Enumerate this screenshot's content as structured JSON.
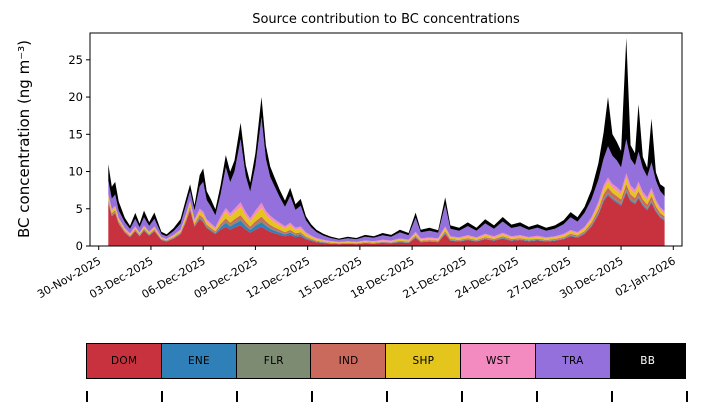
{
  "figure": {
    "background": "#ffffff"
  },
  "chart_data": {
    "type": "area",
    "stacked": true,
    "title": "Source contribution to BC concentrations",
    "xlabel": "",
    "ylabel": "BC concentration (ng m⁻³)",
    "ylim": [
      0,
      28.6
    ],
    "xlim_days": [
      -0.5,
      33.5
    ],
    "x_unit": "days since 30-Nov-2025 (dates shown as tick labels)",
    "grid": false,
    "legend_position": "bottom",
    "yticks": [
      0,
      5,
      10,
      15,
      20,
      25
    ],
    "xticks": [
      {
        "day": 0,
        "label": "30-Nov-2025"
      },
      {
        "day": 3,
        "label": "03-Dec-2025"
      },
      {
        "day": 6,
        "label": "06-Dec-2025"
      },
      {
        "day": 9,
        "label": "09-Dec-2025"
      },
      {
        "day": 12,
        "label": "12-Dec-2025"
      },
      {
        "day": 15,
        "label": "15-Dec-2025"
      },
      {
        "day": 18,
        "label": "18-Dec-2025"
      },
      {
        "day": 21,
        "label": "21-Dec-2025"
      },
      {
        "day": 24,
        "label": "24-Dec-2025"
      },
      {
        "day": 27,
        "label": "27-Dec-2025"
      },
      {
        "day": 30,
        "label": "30-Dec-2025"
      },
      {
        "day": 33,
        "label": "02-Jan-2026"
      }
    ],
    "series_order": [
      "DOM",
      "ENE",
      "FLR",
      "IND",
      "SHP",
      "WST",
      "TRA",
      "BB"
    ],
    "series_colors": {
      "DOM": "#c8323e",
      "ENE": "#2f7fb8",
      "FLR": "#7c8b72",
      "IND": "#c96a5c",
      "SHP": "#e3c51c",
      "WST": "#f38ac0",
      "TRA": "#9370db",
      "BB": "#000000"
    },
    "columns": [
      "day",
      "DOM",
      "ENE",
      "FLR",
      "IND",
      "SHP",
      "WST",
      "TRA",
      "BB"
    ],
    "points": [
      [
        0.55,
        5.8,
        0.1,
        0.1,
        0.3,
        0.4,
        0.3,
        1.8,
        2.2
      ],
      [
        0.75,
        4.0,
        0.08,
        0.08,
        0.25,
        0.3,
        0.25,
        1.4,
        1.6
      ],
      [
        0.95,
        4.4,
        0.08,
        0.08,
        0.25,
        0.35,
        0.25,
        1.5,
        1.7
      ],
      [
        1.15,
        3.0,
        0.06,
        0.06,
        0.2,
        0.25,
        0.2,
        1.0,
        1.2
      ],
      [
        1.5,
        1.8,
        0.05,
        0.05,
        0.15,
        0.2,
        0.15,
        0.8,
        0.6
      ],
      [
        1.8,
        1.2,
        0.05,
        0.05,
        0.1,
        0.15,
        0.15,
        0.6,
        0.4
      ],
      [
        2.1,
        2.0,
        0.05,
        0.05,
        0.15,
        0.2,
        0.2,
        1.0,
        0.8
      ],
      [
        2.35,
        1.3,
        0.05,
        0.05,
        0.1,
        0.15,
        0.15,
        0.7,
        0.5
      ],
      [
        2.6,
        2.1,
        0.05,
        0.05,
        0.15,
        0.2,
        0.2,
        1.1,
        0.9
      ],
      [
        2.9,
        1.4,
        0.05,
        0.05,
        0.1,
        0.15,
        0.15,
        0.8,
        0.5
      ],
      [
        3.2,
        2.0,
        0.05,
        0.05,
        0.15,
        0.2,
        0.2,
        1.0,
        0.85
      ],
      [
        3.6,
        0.8,
        0.04,
        0.04,
        0.08,
        0.12,
        0.12,
        0.4,
        0.3
      ],
      [
        3.9,
        0.6,
        0.04,
        0.04,
        0.08,
        0.1,
        0.1,
        0.35,
        0.25
      ],
      [
        4.3,
        1.0,
        0.05,
        0.05,
        0.1,
        0.15,
        0.15,
        0.5,
        0.4
      ],
      [
        4.7,
        1.6,
        0.05,
        0.05,
        0.12,
        0.2,
        0.18,
        0.8,
        0.6
      ],
      [
        5.0,
        3.2,
        0.08,
        0.08,
        0.2,
        0.4,
        0.25,
        1.2,
        0.8
      ],
      [
        5.25,
        4.8,
        0.1,
        0.1,
        0.3,
        0.5,
        0.3,
        1.3,
        0.9
      ],
      [
        5.5,
        2.6,
        0.08,
        0.08,
        0.2,
        0.35,
        0.25,
        1.2,
        0.7
      ],
      [
        5.8,
        3.6,
        0.15,
        0.12,
        0.3,
        0.5,
        0.35,
        3.0,
        1.5
      ],
      [
        6.0,
        3.2,
        0.15,
        0.12,
        0.3,
        0.5,
        0.35,
        4.0,
        1.8
      ],
      [
        6.2,
        2.4,
        0.12,
        0.1,
        0.25,
        0.4,
        0.3,
        2.6,
        1.2
      ],
      [
        6.45,
        2.0,
        0.1,
        0.1,
        0.2,
        0.35,
        0.3,
        2.2,
        1.0
      ],
      [
        6.7,
        1.6,
        0.1,
        0.08,
        0.18,
        0.3,
        0.25,
        1.6,
        0.8
      ],
      [
        7.0,
        2.2,
        0.3,
        0.15,
        0.3,
        0.6,
        0.4,
        3.0,
        1.2
      ],
      [
        7.3,
        2.6,
        0.5,
        0.2,
        0.4,
        0.9,
        0.5,
        5.5,
        1.6
      ],
      [
        7.55,
        2.2,
        0.4,
        0.18,
        0.35,
        0.8,
        0.45,
        4.2,
        1.4
      ],
      [
        7.8,
        2.5,
        0.5,
        0.2,
        0.4,
        0.9,
        0.5,
        5.0,
        1.5
      ],
      [
        8.15,
        2.8,
        0.6,
        0.25,
        0.5,
        1.1,
        0.6,
        8.5,
        2.2
      ],
      [
        8.45,
        2.2,
        0.45,
        0.2,
        0.4,
        0.8,
        0.5,
        4.8,
        1.5
      ],
      [
        8.7,
        1.8,
        0.35,
        0.15,
        0.3,
        0.7,
        0.4,
        3.6,
        1.2
      ],
      [
        9.0,
        2.2,
        0.5,
        0.2,
        0.4,
        0.9,
        0.55,
        6.0,
        1.7
      ],
      [
        9.35,
        2.6,
        0.6,
        0.25,
        0.5,
        1.2,
        0.65,
        11.5,
        2.7
      ],
      [
        9.6,
        2.2,
        0.5,
        0.2,
        0.4,
        0.9,
        0.5,
        7.0,
        1.8
      ],
      [
        9.85,
        1.9,
        0.4,
        0.18,
        0.35,
        0.8,
        0.45,
        5.2,
        1.4
      ],
      [
        10.1,
        1.7,
        0.35,
        0.15,
        0.3,
        0.7,
        0.4,
        4.4,
        1.2
      ],
      [
        10.4,
        1.5,
        0.3,
        0.12,
        0.25,
        0.6,
        0.35,
        3.4,
        1.0
      ],
      [
        10.7,
        1.3,
        0.25,
        0.1,
        0.2,
        0.5,
        0.3,
        2.6,
        0.85
      ],
      [
        11.0,
        1.5,
        0.3,
        0.12,
        0.25,
        0.6,
        0.35,
        3.6,
        1.1
      ],
      [
        11.3,
        1.2,
        0.2,
        0.1,
        0.2,
        0.45,
        0.3,
        2.4,
        0.75
      ],
      [
        11.6,
        1.3,
        0.22,
        0.1,
        0.2,
        0.5,
        0.3,
        2.8,
        0.9
      ],
      [
        11.9,
        0.9,
        0.15,
        0.08,
        0.15,
        0.35,
        0.22,
        1.6,
        0.55
      ],
      [
        12.2,
        0.7,
        0.1,
        0.06,
        0.12,
        0.25,
        0.18,
        1.1,
        0.4
      ],
      [
        12.5,
        0.5,
        0.08,
        0.05,
        0.1,
        0.2,
        0.15,
        0.8,
        0.3
      ],
      [
        12.9,
        0.4,
        0.06,
        0.04,
        0.08,
        0.15,
        0.12,
        0.55,
        0.25
      ],
      [
        13.3,
        0.3,
        0.05,
        0.04,
        0.06,
        0.12,
        0.1,
        0.4,
        0.2
      ],
      [
        13.8,
        0.25,
        0.04,
        0.03,
        0.05,
        0.1,
        0.08,
        0.3,
        0.15
      ],
      [
        14.3,
        0.3,
        0.04,
        0.03,
        0.06,
        0.12,
        0.1,
        0.4,
        0.2
      ],
      [
        14.8,
        0.25,
        0.04,
        0.03,
        0.05,
        0.1,
        0.08,
        0.35,
        0.18
      ],
      [
        15.3,
        0.35,
        0.05,
        0.04,
        0.07,
        0.13,
        0.1,
        0.5,
        0.25
      ],
      [
        15.8,
        0.3,
        0.04,
        0.03,
        0.06,
        0.12,
        0.1,
        0.45,
        0.2
      ],
      [
        16.3,
        0.4,
        0.05,
        0.04,
        0.08,
        0.15,
        0.12,
        0.6,
        0.3
      ],
      [
        16.8,
        0.35,
        0.05,
        0.04,
        0.07,
        0.13,
        0.1,
        0.5,
        0.25
      ],
      [
        17.3,
        0.5,
        0.06,
        0.05,
        0.1,
        0.18,
        0.13,
        0.8,
        0.35
      ],
      [
        17.8,
        0.4,
        0.05,
        0.04,
        0.08,
        0.15,
        0.12,
        0.6,
        0.3
      ],
      [
        18.2,
        1.1,
        0.08,
        0.06,
        0.15,
        0.3,
        0.2,
        1.9,
        0.7
      ],
      [
        18.5,
        0.5,
        0.06,
        0.05,
        0.1,
        0.18,
        0.13,
        0.8,
        0.35
      ],
      [
        19.0,
        0.6,
        0.06,
        0.05,
        0.1,
        0.2,
        0.15,
        0.9,
        0.4
      ],
      [
        19.5,
        0.5,
        0.06,
        0.05,
        0.1,
        0.18,
        0.13,
        0.75,
        0.35
      ],
      [
        19.9,
        1.6,
        0.1,
        0.08,
        0.2,
        0.4,
        0.25,
        2.9,
        1.0
      ],
      [
        20.2,
        0.7,
        0.07,
        0.05,
        0.12,
        0.22,
        0.16,
        1.0,
        0.45
      ],
      [
        20.7,
        0.6,
        0.06,
        0.05,
        0.1,
        0.2,
        0.15,
        0.9,
        0.4
      ],
      [
        21.2,
        0.8,
        0.07,
        0.06,
        0.12,
        0.25,
        0.17,
        1.2,
        0.5
      ],
      [
        21.7,
        0.6,
        0.06,
        0.05,
        0.1,
        0.2,
        0.15,
        0.9,
        0.4
      ],
      [
        22.2,
        0.9,
        0.08,
        0.06,
        0.14,
        0.28,
        0.18,
        1.4,
        0.55
      ],
      [
        22.7,
        0.7,
        0.07,
        0.05,
        0.12,
        0.22,
        0.16,
        1.0,
        0.45
      ],
      [
        23.2,
        1.0,
        0.08,
        0.06,
        0.15,
        0.3,
        0.2,
        1.5,
        0.6
      ],
      [
        23.7,
        0.7,
        0.07,
        0.05,
        0.12,
        0.22,
        0.16,
        1.1,
        0.45
      ],
      [
        24.2,
        0.8,
        0.07,
        0.06,
        0.12,
        0.25,
        0.17,
        1.2,
        0.5
      ],
      [
        24.7,
        0.65,
        0.06,
        0.05,
        0.1,
        0.2,
        0.15,
        0.95,
        0.4
      ],
      [
        25.2,
        0.75,
        0.07,
        0.05,
        0.12,
        0.22,
        0.16,
        1.1,
        0.45
      ],
      [
        25.7,
        0.6,
        0.06,
        0.05,
        0.1,
        0.2,
        0.15,
        0.9,
        0.4
      ],
      [
        26.2,
        0.7,
        0.07,
        0.05,
        0.12,
        0.22,
        0.16,
        1.0,
        0.45
      ],
      [
        26.7,
        0.9,
        0.08,
        0.06,
        0.14,
        0.26,
        0.18,
        1.3,
        0.55
      ],
      [
        27.1,
        1.3,
        0.1,
        0.07,
        0.18,
        0.3,
        0.2,
        1.7,
        0.7
      ],
      [
        27.5,
        1.1,
        0.09,
        0.06,
        0.16,
        0.28,
        0.18,
        1.4,
        0.6
      ],
      [
        27.9,
        1.6,
        0.1,
        0.08,
        0.2,
        0.35,
        0.22,
        1.9,
        0.8
      ],
      [
        28.3,
        2.6,
        0.12,
        0.1,
        0.3,
        0.45,
        0.3,
        2.4,
        1.3
      ],
      [
        28.7,
        4.2,
        0.15,
        0.12,
        0.45,
        0.6,
        0.4,
        3.0,
        2.2
      ],
      [
        29.0,
        6.0,
        0.18,
        0.15,
        0.6,
        0.7,
        0.5,
        3.6,
        3.5
      ],
      [
        29.25,
        6.8,
        0.2,
        0.15,
        0.7,
        0.8,
        0.55,
        4.2,
        6.6
      ],
      [
        29.5,
        6.2,
        0.18,
        0.15,
        0.6,
        0.7,
        0.5,
        3.8,
        2.9
      ],
      [
        29.75,
        5.8,
        0.18,
        0.14,
        0.6,
        0.7,
        0.5,
        3.6,
        2.5
      ],
      [
        30.0,
        5.4,
        0.17,
        0.13,
        0.55,
        0.65,
        0.45,
        3.2,
        2.2
      ],
      [
        30.3,
        7.2,
        0.2,
        0.16,
        0.75,
        0.85,
        0.6,
        4.6,
        13.6
      ],
      [
        30.55,
        6.0,
        0.18,
        0.14,
        0.6,
        0.7,
        0.5,
        3.6,
        1.8
      ],
      [
        30.8,
        5.6,
        0.17,
        0.13,
        0.55,
        0.65,
        0.45,
        3.3,
        1.6
      ],
      [
        31.0,
        6.4,
        0.18,
        0.15,
        0.65,
        0.75,
        0.5,
        4.0,
        6.4
      ],
      [
        31.25,
        5.4,
        0.16,
        0.13,
        0.55,
        0.6,
        0.45,
        3.2,
        1.5
      ],
      [
        31.5,
        4.8,
        0.15,
        0.12,
        0.5,
        0.55,
        0.4,
        2.8,
        1.2
      ],
      [
        31.75,
        5.8,
        0.17,
        0.14,
        0.6,
        0.65,
        0.45,
        3.4,
        5.9
      ],
      [
        32.0,
        4.6,
        0.14,
        0.12,
        0.45,
        0.5,
        0.38,
        2.6,
        1.1
      ],
      [
        32.25,
        3.8,
        0.12,
        0.1,
        0.4,
        0.45,
        0.32,
        2.2,
        0.9
      ],
      [
        32.5,
        3.4,
        0.12,
        0.1,
        0.35,
        0.4,
        0.3,
        2.0,
        1.2
      ]
    ]
  },
  "legend": {
    "items": [
      {
        "label": "DOM",
        "color": "#c8323e",
        "text_color": "#000000"
      },
      {
        "label": "ENE",
        "color": "#2f7fb8",
        "text_color": "#000000"
      },
      {
        "label": "FLR",
        "color": "#7c8b72",
        "text_color": "#000000"
      },
      {
        "label": "IND",
        "color": "#c96a5c",
        "text_color": "#000000"
      },
      {
        "label": "SHP",
        "color": "#e3c51c",
        "text_color": "#000000"
      },
      {
        "label": "WST",
        "color": "#f38ac0",
        "text_color": "#000000"
      },
      {
        "label": "TRA",
        "color": "#9370db",
        "text_color": "#000000"
      },
      {
        "label": "BB",
        "color": "#000000",
        "text_color": "#ffffff"
      }
    ]
  }
}
